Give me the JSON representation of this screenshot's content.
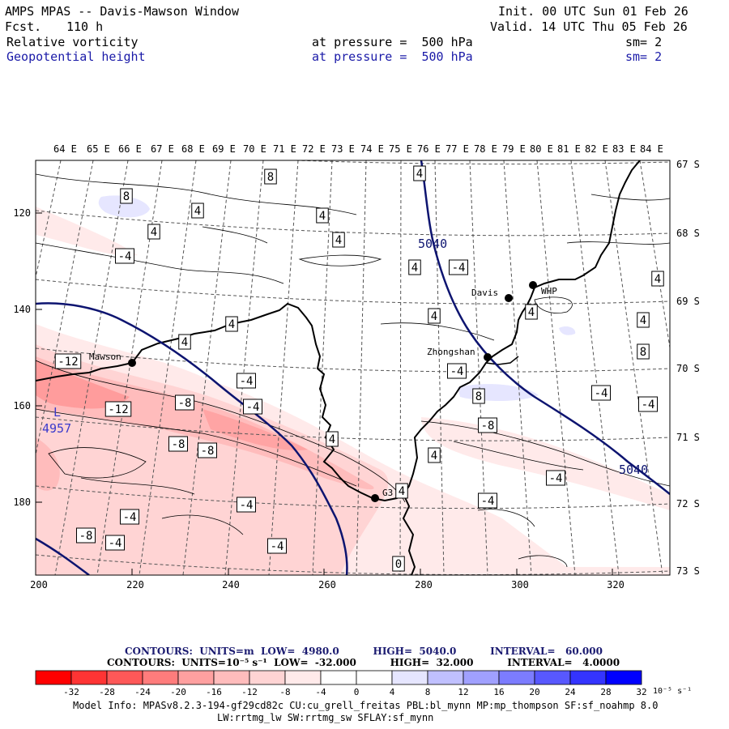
{
  "header": {
    "title": "AMPS MPAS -- Davis-Mawson Window",
    "fcst_label": "Fcst.",
    "fcst_value": "110 h",
    "init": "Init. 00 UTC Sun 01 Feb 26",
    "valid": "Valid. 14 UTC Thu 05 Feb 26",
    "field1_name": "Relative vorticity",
    "field1_level": "at pressure =  500 hPa",
    "field1_sm": "sm= 2",
    "field2_name": "Geopotential height",
    "field2_level": "at pressure =  500 hPa",
    "field2_sm": "sm= 2"
  },
  "map": {
    "lon_labels": [
      "64 E",
      "65 E",
      "66 E",
      "67 E",
      "68 E",
      "69 E",
      "70 E",
      "71 E",
      "72 E",
      "73 E",
      "74 E",
      "75 E",
      "76 E",
      "77 E",
      "78 E",
      "79 E",
      "80 E",
      "81 E",
      "82 E",
      "83 E",
      "84 E"
    ],
    "lat_labels": [
      "67 S",
      "68 S",
      "69 S",
      "70 S",
      "71 S",
      "72 S",
      "73 S"
    ],
    "x_ticks": [
      "200",
      "220",
      "240",
      "260",
      "280",
      "300",
      "320"
    ],
    "y_ticks": [
      "120",
      "140",
      "160",
      "180"
    ],
    "stations": [
      {
        "name": "Mawson"
      },
      {
        "name": "Davis"
      },
      {
        "name": "WHP"
      },
      {
        "name": "Zhongshan"
      },
      {
        "name": "G3"
      }
    ],
    "height_labels": [
      "5040",
      "5040"
    ],
    "low_marker": "L",
    "low_value": "4957",
    "contour_labels": [
      "8",
      "4",
      "8",
      "4",
      "4",
      "4",
      "4",
      "-4",
      "4",
      "-4",
      "4",
      "4",
      "4",
      "-12",
      "-4",
      "-8",
      "-12",
      "-8",
      "-8",
      "4",
      "8",
      "-8",
      "-4",
      "-4",
      "-4",
      "-8",
      "-4",
      "4",
      "-4",
      "-4",
      "4",
      "-4",
      "4",
      "8",
      "4",
      "-4",
      "4",
      "-4",
      "-4",
      "0"
    ]
  },
  "contours_info": {
    "line1": "CONTOURS:  UNITS=m  LOW=  4980.0          HIGH=  5040.0          INTERVAL=   60.000",
    "line2": "CONTOURS:  UNITS=10⁻⁵ s⁻¹  LOW=  -32.000          HIGH=  32.000          INTERVAL=   4.0000"
  },
  "colorbar": {
    "labels": [
      "-32",
      "-28",
      "-24",
      "-20",
      "-16",
      "-12",
      "-8",
      "-4",
      "0",
      "4",
      "8",
      "12",
      "16",
      "20",
      "24",
      "28",
      "32"
    ],
    "unit": "10⁻⁵ s⁻¹",
    "colors": [
      "#ff0000",
      "#ff3434",
      "#ff5858",
      "#ff7c7c",
      "#ffa0a0",
      "#ffbcbc",
      "#ffd4d4",
      "#ffeaea",
      "#ffffff",
      "#ffffff",
      "#e6e6ff",
      "#c0c0ff",
      "#a0a0ff",
      "#7c7cff",
      "#5858ff",
      "#3434ff",
      "#0000ff"
    ]
  },
  "footer": {
    "line1": "Model Info: MPASv8.2.3-194-gf29cd82c CU:cu_grell_freitas PBL:bl_mynn MP:mp_thompson SF:sf_noahmp 8.0",
    "line2": "LW:rrtmg_lw SW:rrtmg_sw SFLAY:sf_mynn"
  }
}
